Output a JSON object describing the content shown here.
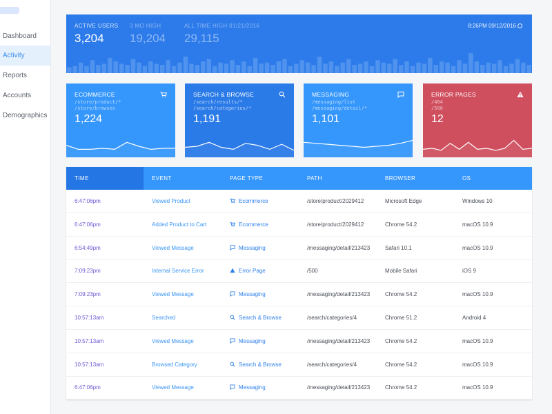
{
  "sidebar": {
    "items": [
      {
        "label": "Dashboard",
        "active": false
      },
      {
        "label": "Activity",
        "active": true
      },
      {
        "label": "Reports",
        "active": false
      },
      {
        "label": "Accounts",
        "active": false
      },
      {
        "label": "Demographics",
        "active": false
      }
    ]
  },
  "hero": {
    "active_users_label": "ACTIVE USERS",
    "active_users_value": "3,204",
    "high3_label": "3 MO HIGH",
    "high3_value": "19,204",
    "alltime_label": "ALL TIME HIGH 01/21/2016",
    "alltime_value": "29,115",
    "timestamp": "8:26PM 09/12/2016",
    "bar_levels": [
      0.25,
      0.3,
      0.45,
      0.3,
      0.55,
      0.35,
      0.4,
      0.65,
      0.5,
      0.4,
      0.35,
      0.6,
      0.45,
      0.3,
      0.5,
      0.4,
      0.35,
      0.55,
      0.3,
      0.45,
      0.7,
      0.4,
      0.35,
      0.5,
      0.6,
      0.3,
      0.45,
      0.4,
      0.55,
      0.35,
      0.5,
      0.3,
      0.65,
      0.4,
      0.45,
      0.35,
      0.5,
      0.6,
      0.3,
      0.4,
      0.55,
      0.45,
      0.35,
      0.7,
      0.4,
      0.5,
      0.3,
      0.45,
      0.6,
      0.35,
      0.4,
      0.5,
      0.3,
      0.55,
      0.45,
      0.4,
      0.6,
      0.35,
      0.5,
      0.3,
      0.45,
      0.4,
      0.65,
      0.35,
      0.5,
      0.45,
      0.3,
      0.55,
      0.4,
      0.85,
      0.5,
      0.35,
      0.45,
      0.4,
      0.55,
      0.3,
      0.4,
      0.6,
      0.45,
      0.35
    ],
    "bar_color": "#4f93ef"
  },
  "cards": [
    {
      "title": "ECOMMERCE",
      "path1": "/store/product/*",
      "path2": "/store/browses",
      "value": "1,224",
      "icon": "cart-icon",
      "color": "#3596fb",
      "spark": [
        0.6,
        0.4,
        0.4,
        0.45,
        0.4,
        0.75,
        0.55,
        0.4,
        0.45,
        0.45
      ]
    },
    {
      "title": "SEARCH & BROWSE",
      "path1": "/search/results/*",
      "path2": "/search/categories/*",
      "value": "1,191",
      "icon": "search-icon",
      "color": "#2a7ae8",
      "spark": [
        0.5,
        0.55,
        0.75,
        0.5,
        0.4,
        0.7,
        0.6,
        0.4,
        0.65,
        0.35
      ]
    },
    {
      "title": "MESSAGING",
      "path1": "/messaging/list",
      "path2": "/messaging/detail/*",
      "value": "1,101",
      "icon": "message-icon",
      "color": "#3596fb",
      "spark": [
        0.75,
        0.7,
        0.65,
        0.6,
        0.55,
        0.5,
        0.55,
        0.6,
        0.7,
        0.85
      ]
    },
    {
      "title": "ERROR PAGES",
      "path1": "/404",
      "path2": "/500",
      "value": "12",
      "icon": "warning-icon",
      "color": "#cf4f5f",
      "spark": [
        0.4,
        0.45,
        0.35,
        0.7,
        0.4,
        0.75,
        0.4,
        0.45,
        0.35,
        0.45,
        0.85,
        0.4,
        0.45
      ]
    }
  ],
  "table": {
    "headers": [
      "TIME",
      "EVENT",
      "PAGE TYPE",
      "PATH",
      "BROWSER",
      "OS"
    ],
    "rows": [
      {
        "time": "6:47:06pm",
        "event": "Viewed Product",
        "page_type": "Ecommerce",
        "icon": "cart-icon",
        "path": "/store/product/2029412",
        "browser": "Microsoft Edge",
        "os": "Windows 10"
      },
      {
        "time": "6:47:06pm",
        "event": "Added Product to Cart",
        "page_type": "Ecommerce",
        "icon": "cart-icon",
        "path": "/store/product/2029412",
        "browser": "Chrome 54.2",
        "os": "macOS 10.9"
      },
      {
        "time": "6:54:49pm",
        "event": "Viewed Message",
        "page_type": "Messaging",
        "icon": "message-icon",
        "path": "/messaging/detail/213423",
        "browser": "Safari 10.1",
        "os": "macOS 10.9"
      },
      {
        "time": "7:09:23pm",
        "event": "Internal Service Error",
        "page_type": "Error Page",
        "icon": "warning-icon",
        "path": "/500",
        "browser": "Mobile Safari",
        "os": "iOS 9"
      },
      {
        "time": "7:09:23pm",
        "event": "Viewed Message",
        "page_type": "Messaging",
        "icon": "message-icon",
        "path": "/messaging/detail/213423",
        "browser": "Chrome 54.2",
        "os": "macOS 10.9"
      },
      {
        "time": "10:57:13am",
        "event": "Searched",
        "page_type": "Search & Browse",
        "icon": "search-icon",
        "path": "/search/categories/4",
        "browser": "Chrome 51.2",
        "os": "Android 4"
      },
      {
        "time": "10:57:13am",
        "event": "Viewed Message",
        "page_type": "Messaging",
        "icon": "message-icon",
        "path": "/messaging/detail/213423",
        "browser": "Chrome 54.2",
        "os": "macOS 10.9"
      },
      {
        "time": "10:57:13am",
        "event": "Browsed Category",
        "page_type": "Search & Browse",
        "icon": "search-icon",
        "path": "/search/categories/4",
        "browser": "Chrome 54.2",
        "os": "macOS 10.9"
      },
      {
        "time": "6:47:06pm",
        "event": "Viewed Message",
        "page_type": "Messaging",
        "icon": "message-icon",
        "path": "/messaging/detail/213423",
        "browser": "Chrome 54.2",
        "os": "macOS 10.9"
      }
    ]
  }
}
